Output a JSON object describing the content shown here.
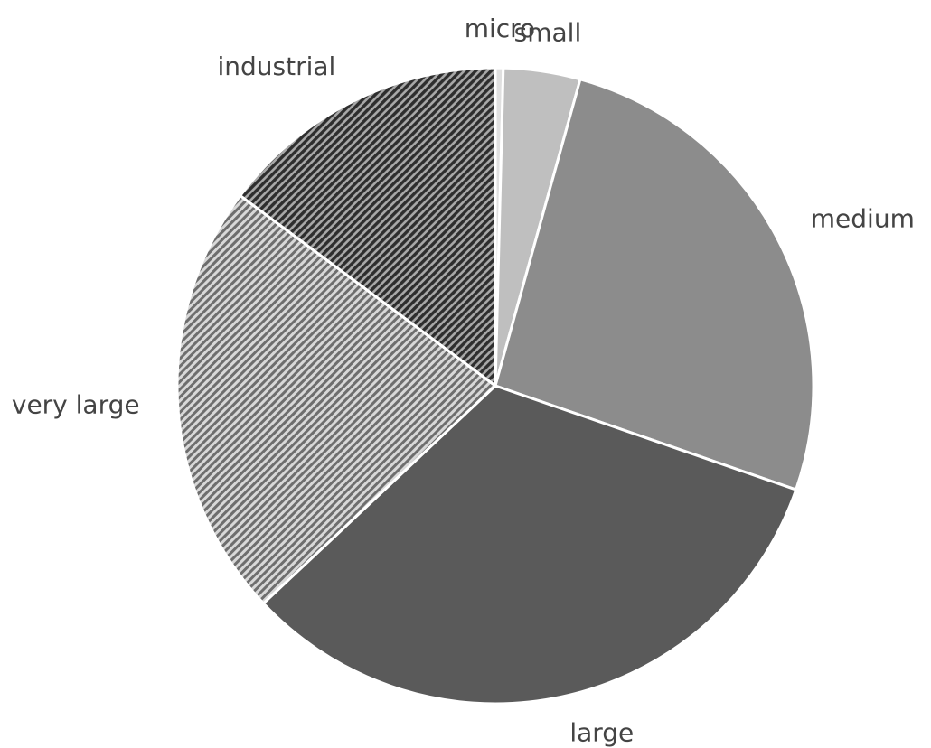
{
  "chart_data": {
    "type": "pie",
    "categories": [
      "micro",
      "small",
      "medium",
      "large",
      "very large",
      "industrial"
    ],
    "values": [
      0.4,
      3.9,
      26,
      32.7,
      22.2,
      14.8
    ],
    "colors": [
      "#e0e0e0",
      "#bfbfbf",
      "#8c8c8c",
      "#5a5a5a",
      "#9a9a9a",
      "#4a4a4a"
    ],
    "hatch": [
      false,
      false,
      false,
      false,
      true,
      true
    ]
  }
}
